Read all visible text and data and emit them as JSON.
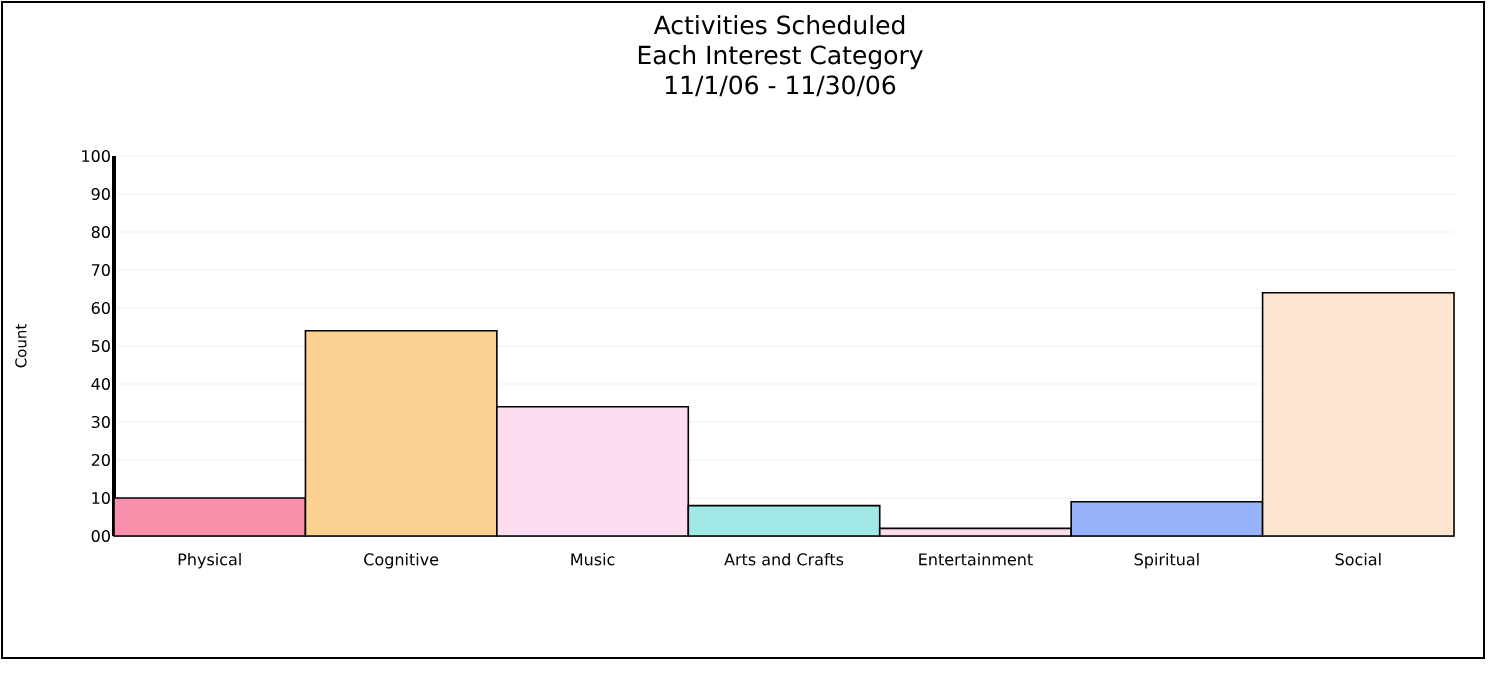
{
  "chart_data": {
    "type": "bar",
    "title": "Activities Scheduled",
    "subtitle": "Each Interest Category",
    "annotations": [
      "11/1/06 - 11/30/06"
    ],
    "ylabel": "Count",
    "categories": [
      "Physical",
      "Cognitive",
      "Music",
      "Arts and Crafts",
      "Entertainment",
      "Spiritual",
      "Social"
    ],
    "values": [
      10,
      54,
      34,
      8,
      2,
      9,
      64
    ],
    "colors": [
      "#f990ab",
      "#fccf92",
      "#fcdcee",
      "#a0e8e6",
      "#fcdcee",
      "#96b2fa",
      "#fde5cf"
    ],
    "ylim": [
      0,
      100
    ],
    "yticks": [
      {
        "value": 0,
        "label": "00"
      },
      10,
      20,
      30,
      40,
      50,
      60,
      70,
      80,
      90,
      100
    ],
    "grid": "y"
  }
}
